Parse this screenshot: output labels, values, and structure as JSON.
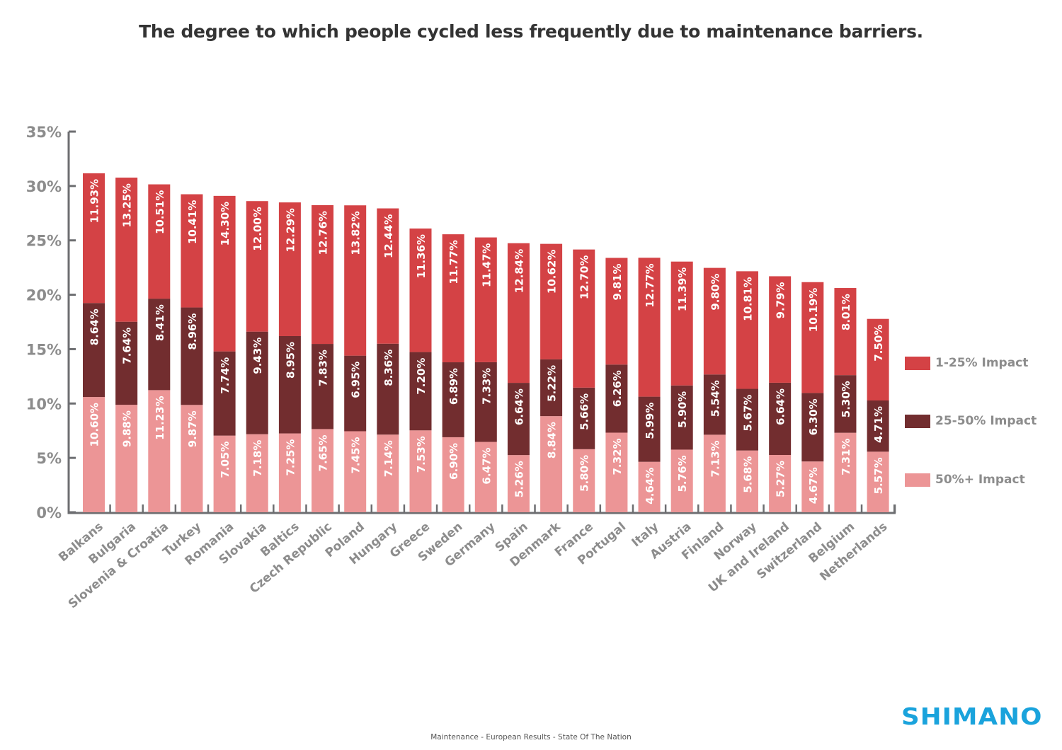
{
  "chart_data": {
    "type": "bar",
    "stacked": true,
    "title": "The degree to which people cycled less frequently due to maintenance barriers.",
    "xlabel": "",
    "ylabel": "",
    "ylim": [
      0,
      35
    ],
    "yticks": [
      0,
      5,
      10,
      15,
      20,
      25,
      30,
      35
    ],
    "ytick_labels": [
      "0%",
      "5%",
      "10%",
      "15%",
      "20%",
      "25%",
      "30%",
      "35%"
    ],
    "grid": false,
    "legend_position": "right",
    "categories": [
      "Balkans",
      "Bulgaria",
      "Slovenia & Croatia",
      "Turkey",
      "Romania",
      "Slovakia",
      "Baltics",
      "Czech Republic",
      "Poland",
      "Hungary",
      "Greece",
      "Sweden",
      "Germany",
      "Spain",
      "Denmark",
      "France",
      "Portugal",
      "Italy",
      "Austria",
      "Finland",
      "Norway",
      "UK and Ireland",
      "Switzerland",
      "Belgium",
      "Netherlands"
    ],
    "series": [
      {
        "name": "50%+ Impact",
        "color": "#ec9596",
        "values": [
          10.6,
          9.88,
          11.23,
          9.87,
          7.05,
          7.18,
          7.25,
          7.65,
          7.45,
          7.14,
          7.53,
          6.9,
          6.47,
          5.26,
          8.84,
          5.8,
          7.32,
          4.64,
          5.76,
          7.13,
          5.68,
          5.27,
          4.67,
          7.31,
          5.57
        ]
      },
      {
        "name": "25-50% Impact",
        "color": "#722d2f",
        "values": [
          8.64,
          7.64,
          8.41,
          8.96,
          7.74,
          9.43,
          8.95,
          7.83,
          6.95,
          8.36,
          7.2,
          6.89,
          7.33,
          6.64,
          5.22,
          5.66,
          6.26,
          5.99,
          5.9,
          5.54,
          5.67,
          6.64,
          6.3,
          5.3,
          4.71
        ]
      },
      {
        "name": "1-25% Impact",
        "color": "#d44245",
        "values": [
          11.93,
          13.25,
          10.51,
          10.41,
          14.3,
          12.0,
          12.29,
          12.76,
          13.82,
          12.44,
          11.36,
          11.77,
          11.47,
          12.84,
          10.62,
          12.7,
          9.81,
          12.77,
          11.39,
          9.8,
          10.81,
          9.79,
          10.19,
          8.01,
          7.5
        ]
      }
    ],
    "value_label_format": "{v}%",
    "legend": [
      {
        "label": "1-25% Impact",
        "color": "#d44245"
      },
      {
        "label": "25-50% Impact",
        "color": "#722d2f"
      },
      {
        "label": "50%+ Impact",
        "color": "#ec9596"
      }
    ]
  },
  "branding": {
    "logo_text": "SHIMANO",
    "logo_color": "#1aa3dc"
  },
  "footer": {
    "text": "Maintenance - European Results - State Of The Nation"
  },
  "colors": {
    "axis": "#6d6e71",
    "tick_label": "#8c8c8c",
    "value_label": "#ffffff"
  }
}
